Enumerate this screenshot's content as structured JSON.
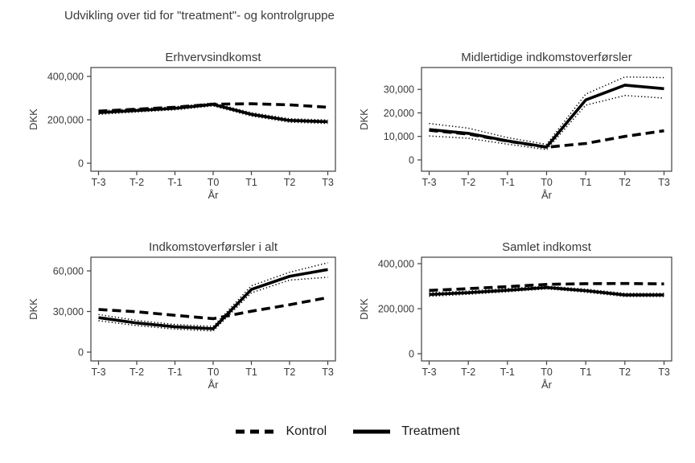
{
  "figure": {
    "title": "Udvikling over tid for \"treatment\"- og kontrolgruppe"
  },
  "legend": {
    "items": [
      {
        "label": "Kontrol",
        "style": "dashed"
      },
      {
        "label": "Treatment",
        "style": "solid"
      }
    ]
  },
  "colors": {
    "line": "#000000",
    "text": "#3a3a3a",
    "frame": "#404040",
    "background": "#ffffff"
  },
  "chart_data": [
    {
      "type": "line",
      "title": "Erhvervsindkomst",
      "xlabel": "År",
      "ylabel": "DKK",
      "categories": [
        "T-3",
        "T-2",
        "T-1",
        "T0",
        "T1",
        "T2",
        "T3"
      ],
      "yticks": [
        0,
        200000,
        400000
      ],
      "ylim": [
        -37000,
        441000
      ],
      "grid": false,
      "series": [
        {
          "name": "Kontrol",
          "style": "dashed",
          "values": [
            240000,
            249000,
            258000,
            272000,
            274000,
            269000,
            258000
          ]
        },
        {
          "name": "Treatment",
          "style": "solid",
          "values": [
            233000,
            243000,
            253000,
            271000,
            225000,
            197000,
            191000
          ],
          "ci_lower": [
            225000,
            236000,
            246000,
            264000,
            217000,
            189000,
            183000
          ],
          "ci_upper": [
            241000,
            250000,
            260000,
            278000,
            233000,
            205000,
            199000
          ]
        }
      ]
    },
    {
      "type": "line",
      "title": "Midlertidige indkomstoverførsler",
      "xlabel": "År",
      "ylabel": "DKK",
      "categories": [
        "T-3",
        "T-2",
        "T-1",
        "T0",
        "T1",
        "T2",
        "T3"
      ],
      "yticks": [
        0,
        10000,
        20000,
        30000
      ],
      "ylim": [
        -4800,
        39300
      ],
      "grid": false,
      "series": [
        {
          "name": "Kontrol",
          "style": "dashed",
          "values": [
            12600,
            11000,
            8000,
            5400,
            7000,
            10000,
            12400
          ]
        },
        {
          "name": "Treatment",
          "style": "solid",
          "values": [
            12900,
            11300,
            8100,
            5500,
            25500,
            31800,
            30300
          ],
          "ci_lower": [
            10200,
            9200,
            6700,
            4400,
            23300,
            27400,
            26300
          ],
          "ci_upper": [
            15500,
            13500,
            9500,
            6600,
            28000,
            35300,
            35000
          ]
        }
      ]
    },
    {
      "type": "line",
      "title": "Indkomstoverførsler i alt",
      "xlabel": "År",
      "ylabel": "DKK",
      "categories": [
        "T-3",
        "T-2",
        "T-1",
        "T0",
        "T1",
        "T2",
        "T3"
      ],
      "yticks": [
        0,
        30000,
        60000
      ],
      "ylim": [
        -6500,
        70100
      ],
      "grid": false,
      "series": [
        {
          "name": "Kontrol",
          "style": "dashed",
          "values": [
            31500,
            29800,
            27200,
            24700,
            30200,
            35000,
            40300
          ]
        },
        {
          "name": "Treatment",
          "style": "solid",
          "values": [
            25500,
            21500,
            18700,
            17300,
            46300,
            56000,
            61000
          ],
          "ci_lower": [
            23200,
            19600,
            17000,
            15600,
            43800,
            53200,
            55300
          ],
          "ci_upper": [
            27800,
            23400,
            20400,
            19000,
            49000,
            59000,
            66000
          ]
        }
      ]
    },
    {
      "type": "line",
      "title": "Samlet indkomst",
      "xlabel": "År",
      "ylabel": "DKK",
      "categories": [
        "T-3",
        "T-2",
        "T-1",
        "T0",
        "T1",
        "T2",
        "T3"
      ],
      "yticks": [
        0,
        200000,
        400000
      ],
      "ylim": [
        -32000,
        428600
      ],
      "grid": false,
      "series": [
        {
          "name": "Kontrol",
          "style": "dashed",
          "values": [
            281000,
            289000,
            298000,
            308000,
            311000,
            312000,
            310000
          ]
        },
        {
          "name": "Treatment",
          "style": "solid",
          "values": [
            263000,
            271000,
            282000,
            294000,
            280000,
            261000,
            261000
          ],
          "ci_lower": [
            255000,
            264000,
            275000,
            288000,
            273000,
            254000,
            254000
          ],
          "ci_upper": [
            271000,
            278000,
            289000,
            300000,
            287000,
            268000,
            268000
          ]
        }
      ]
    }
  ]
}
